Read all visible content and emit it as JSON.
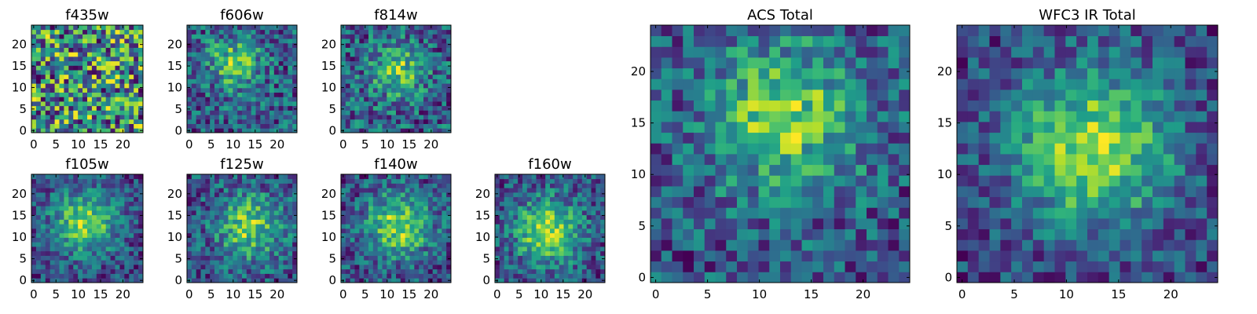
{
  "chart_data": [
    {
      "type": "heatmap",
      "title": "f435w",
      "colormap": "viridis",
      "grid_size": 24,
      "source_peak": [
        12,
        10
      ],
      "source_spread": 0,
      "noise": 1.0,
      "xlim": [
        0,
        24
      ],
      "ylim": [
        0,
        24
      ],
      "xticks": [
        0,
        5,
        10,
        15,
        20
      ],
      "yticks": [
        0,
        5,
        10,
        15,
        20
      ]
    },
    {
      "type": "heatmap",
      "title": "f606w",
      "colormap": "viridis",
      "grid_size": 24,
      "source_peak": [
        10,
        15
      ],
      "source_spread": 4,
      "noise": 0.8,
      "xlim": [
        0,
        24
      ],
      "ylim": [
        0,
        24
      ],
      "xticks": [
        0,
        5,
        10,
        15,
        20
      ],
      "yticks": [
        0,
        5,
        10,
        15,
        20
      ]
    },
    {
      "type": "heatmap",
      "title": "f814w",
      "colormap": "viridis",
      "grid_size": 24,
      "source_peak": [
        12,
        13
      ],
      "source_spread": 4,
      "noise": 0.8,
      "xlim": [
        0,
        24
      ],
      "ylim": [
        0,
        24
      ],
      "xticks": [
        0,
        5,
        10,
        15,
        20
      ],
      "yticks": [
        0,
        5,
        10,
        15,
        20
      ]
    },
    {
      "type": "heatmap",
      "title": "f105w",
      "colormap": "viridis",
      "grid_size": 24,
      "source_peak": [
        11,
        13
      ],
      "source_spread": 5,
      "noise": 0.5,
      "xlim": [
        0,
        24
      ],
      "ylim": [
        0,
        24
      ],
      "xticks": [
        0,
        5,
        10,
        15,
        20
      ],
      "yticks": [
        0,
        5,
        10,
        15,
        20
      ]
    },
    {
      "type": "heatmap",
      "title": "f125w",
      "colormap": "viridis",
      "grid_size": 24,
      "source_peak": [
        13,
        12
      ],
      "source_spread": 5,
      "noise": 0.6,
      "xlim": [
        0,
        24
      ],
      "ylim": [
        0,
        24
      ],
      "xticks": [
        0,
        5,
        10,
        15,
        20
      ],
      "yticks": [
        0,
        5,
        10,
        15,
        20
      ]
    },
    {
      "type": "heatmap",
      "title": "f140w",
      "colormap": "viridis",
      "grid_size": 24,
      "source_peak": [
        12,
        12
      ],
      "source_spread": 5,
      "noise": 0.55,
      "xlim": [
        0,
        24
      ],
      "ylim": [
        0,
        24
      ],
      "xticks": [
        0,
        5,
        10,
        15,
        20
      ],
      "yticks": [
        0,
        5,
        10,
        15,
        20
      ]
    },
    {
      "type": "heatmap",
      "title": "f160w",
      "colormap": "viridis",
      "grid_size": 24,
      "source_peak": [
        11,
        11
      ],
      "source_spread": 5,
      "noise": 0.5,
      "xlim": [
        0,
        24
      ],
      "ylim": [
        0,
        24
      ],
      "xticks": [
        0,
        5,
        10,
        15,
        20
      ],
      "yticks": [
        0,
        5,
        10,
        15,
        20
      ]
    },
    {
      "type": "heatmap",
      "title": "ACS Total",
      "colormap": "viridis",
      "grid_size": 24,
      "source_peak": [
        12,
        15
      ],
      "source_spread": 5,
      "noise": 0.6,
      "xlim": [
        0,
        24
      ],
      "ylim": [
        0,
        24
      ],
      "xticks": [
        0,
        5,
        10,
        15,
        20
      ],
      "yticks": [
        0,
        5,
        10,
        15,
        20
      ]
    },
    {
      "type": "heatmap",
      "title": "WFC3 IR Total",
      "colormap": "viridis",
      "grid_size": 24,
      "source_peak": [
        12,
        12
      ],
      "source_spread": 5,
      "noise": 0.4,
      "xlim": [
        0,
        24
      ],
      "ylim": [
        0,
        24
      ],
      "xticks": [
        0,
        5,
        10,
        15,
        20
      ],
      "yticks": [
        0,
        5,
        10,
        15,
        20
      ]
    }
  ]
}
